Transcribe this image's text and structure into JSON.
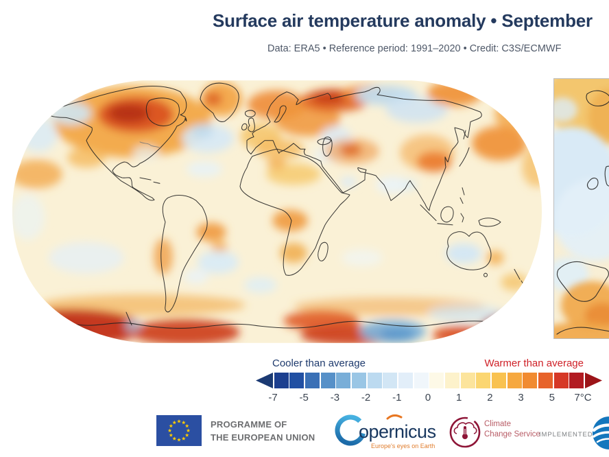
{
  "header": {
    "title": "Surface air temperature anomaly • September",
    "subtitle": "Data: ERA5 • Reference period: 1991–2020 • Credit: C3S/ECMWF",
    "title_color": "#243a5e",
    "subtitle_color": "#4e5868"
  },
  "legend": {
    "cooler_label": "Cooler than average",
    "cooler_color": "#1e3a6d",
    "warmer_label": "Warmer than average",
    "warmer_color": "#cf2027"
  },
  "chart_data": {
    "type": "heatmap",
    "variant": "global surface air temperature anomaly map, Robinson projection, with partially cropped Europe inset map at right edge",
    "title": "Surface air temperature anomaly • September",
    "subtitle": "Data: ERA5 • Reference period: 1991–2020 • Credit: C3S/ECMWF",
    "units": "°C",
    "grid": "off",
    "legend_position": "bottom",
    "colorbar": {
      "ticks": [
        "-7",
        "-5",
        "-3",
        "-2",
        "-1",
        "0",
        "1",
        "2",
        "3",
        "5",
        "7°C"
      ],
      "colors": [
        "#1c3f8f",
        "#2150a3",
        "#3a70b6",
        "#5690c8",
        "#79aed8",
        "#9ac6e5",
        "#bcdaf0",
        "#d2e6f5",
        "#e2eef9",
        "#f0f6fb",
        "#fdf9e7",
        "#fdf2cb",
        "#fce49c",
        "#fbd671",
        "#f9c250",
        "#f6a83f",
        "#f18b31",
        "#e7632a",
        "#d63826",
        "#b21b22"
      ],
      "left_arrow_color": "#1b3a73",
      "right_arrow_color": "#9c1418",
      "tick_color": "#3b4450"
    },
    "regions_approx_anomaly_c": [
      {
        "region": "North-central Canada / Hudson Bay area",
        "value": 5
      },
      {
        "region": "Alaska / Bering Sea",
        "value": -0.5
      },
      {
        "region": "Western Greenland",
        "value": 3
      },
      {
        "region": "Subpolar North Atlantic",
        "value": -1
      },
      {
        "region": "Contiguous United States",
        "value": 1
      },
      {
        "region": "Scandinavia / north-east Europe",
        "value": 2.5
      },
      {
        "region": "Western / central Europe",
        "value": 1.5
      },
      {
        "region": "Western Siberia",
        "value": 4
      },
      {
        "region": "Central Siberia",
        "value": -1
      },
      {
        "region": "Central Asia",
        "value": 4
      },
      {
        "region": "Eastern China / Korea / Japan",
        "value": 3
      },
      {
        "region": "North Pacific",
        "value": 2.5
      },
      {
        "region": "India",
        "value": 0
      },
      {
        "region": "Sahara / central Africa",
        "value": 1.5
      },
      {
        "region": "Central Brazil",
        "value": 2
      },
      {
        "region": "South Atlantic",
        "value": -1
      },
      {
        "region": "Central Australia",
        "value": -1
      },
      {
        "region": "Eastern Australia / Tasman Sea",
        "value": 1.5
      },
      {
        "region": "Southern Ocean near Antarctic coast",
        "value": 5
      },
      {
        "region": "East Antarctic coastal sector (blue lobe)",
        "value": -3
      }
    ],
    "inset": {
      "region_shown": "Europe / eastern North Atlantic (cropped at right edge)",
      "visible_coastlines": [
        "Iceland",
        "Ireland",
        "Great Britain (partial)",
        "Iberian Peninsula",
        "Morocco coast"
      ]
    }
  },
  "footer": {
    "eu_logo": {
      "line1": "PROGRAMME OF",
      "line2": "THE EUROPEAN UNION",
      "flag_color": "#2b4fa2",
      "star_color": "#ffcc00"
    },
    "copernicus": {
      "wordmark": "opernicus",
      "tagline": "Europe's eyes on Earth",
      "wordmark_color": "#17365e",
      "tagline_color": "#e07c2c",
      "arc_color_top": "#46b1e1",
      "arc_color_bottom": "#1b6aa8",
      "accent_color": "#e87722"
    },
    "ccs": {
      "line1": "Climate",
      "line2": "Change Service",
      "logo_color": "#8e1537",
      "text_color": "#b85c66"
    },
    "implemented_by": "IMPLEMENTED BY",
    "ecmwf_logo_color": "#1577bd"
  }
}
